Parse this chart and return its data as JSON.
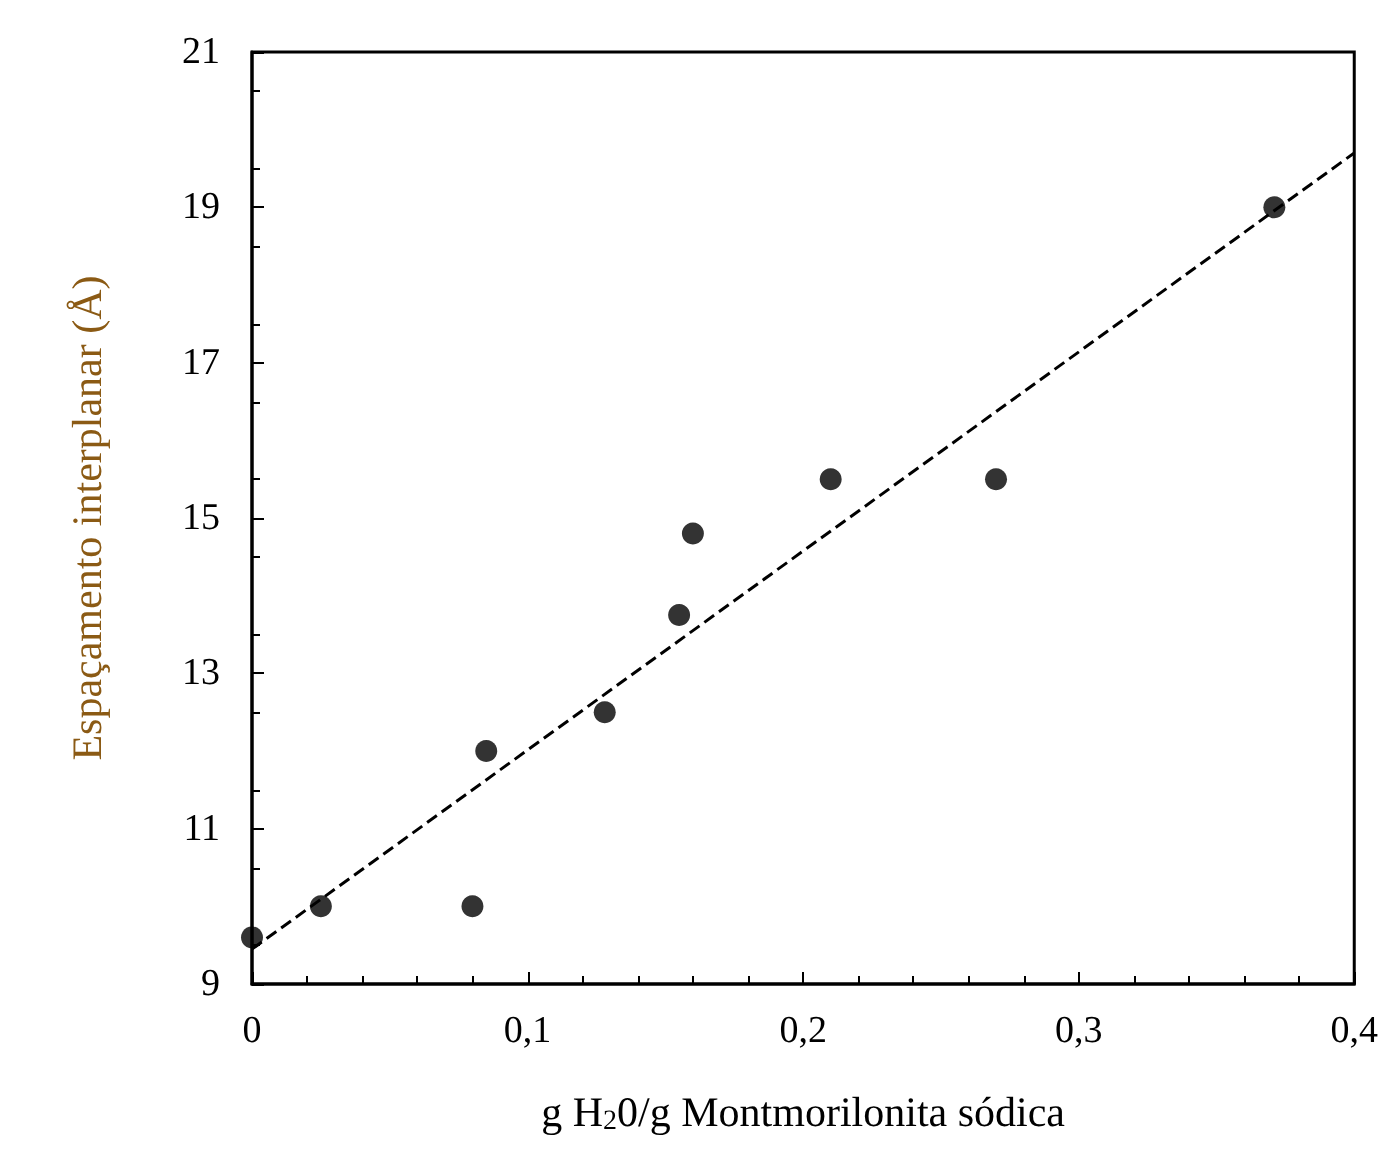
{
  "chart_data": {
    "type": "scatter",
    "xlabel": "g H$_{2}$0/g Montmorilonita sódica",
    "ylabel": "Espaçamento interplanar (Å)",
    "xlim": [
      0,
      0.4
    ],
    "ylim": [
      9,
      21
    ],
    "xticks": [
      {
        "value": 0,
        "label": "0"
      },
      {
        "value": 0.1,
        "label": "0,1"
      },
      {
        "value": 0.2,
        "label": "0,2"
      },
      {
        "value": 0.3,
        "label": "0,3"
      },
      {
        "value": 0.4,
        "label": "0,4"
      }
    ],
    "yticks": [
      9,
      11,
      13,
      15,
      17,
      19,
      21
    ],
    "marker": "circle",
    "series": [
      {
        "color": "#000000",
        "x": [
          0,
          0.025,
          0.08,
          0.085,
          0.128,
          0.155,
          0.16,
          0.21,
          0.27,
          0.371
        ],
        "values": [
          9.6,
          10,
          10,
          12,
          12.5,
          13.75,
          14.8,
          15.5,
          15.5,
          19
        ]
      },
      {
        "type": "line",
        "color": "#000000",
        "line_style": "dashed",
        "marker": "none",
        "x": [
          0,
          0.4
        ],
        "values": [
          9.45,
          19.7
        ]
      }
    ]
  }
}
